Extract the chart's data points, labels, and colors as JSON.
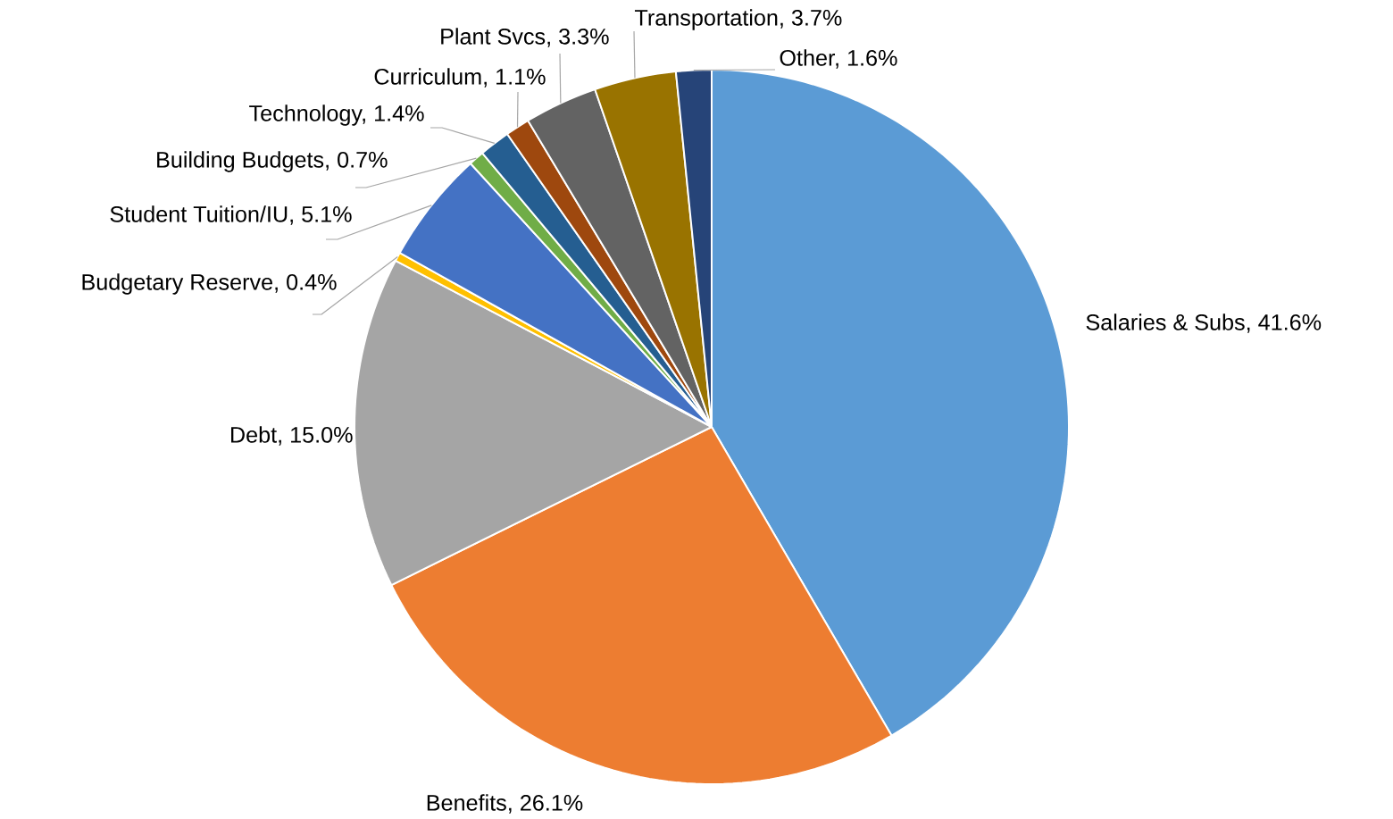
{
  "chart_data": {
    "type": "pie",
    "categories": [
      "Salaries & Subs, 41.6%",
      "Benefits, 26.1%",
      "Debt, 15.0%",
      "Budgetary Reserve, 0.4%",
      "Student Tuition/IU, 5.1%",
      "Building Budgets, 0.7%",
      "Technology, 1.4%",
      "Curriculum, 1.1%",
      "Plant Svcs, 3.3%",
      "Transportation, 3.7%",
      "Other, 1.6%"
    ],
    "values": [
      41.6,
      26.1,
      15.0,
      0.4,
      5.1,
      0.7,
      1.4,
      1.1,
      3.3,
      3.7,
      1.6
    ],
    "colors": [
      "#5b9bd5",
      "#ed7d31",
      "#a5a5a5",
      "#ffc000",
      "#4472c4",
      "#70ad47",
      "#255e91",
      "#9e480e",
      "#636363",
      "#997300",
      "#264478"
    ]
  }
}
